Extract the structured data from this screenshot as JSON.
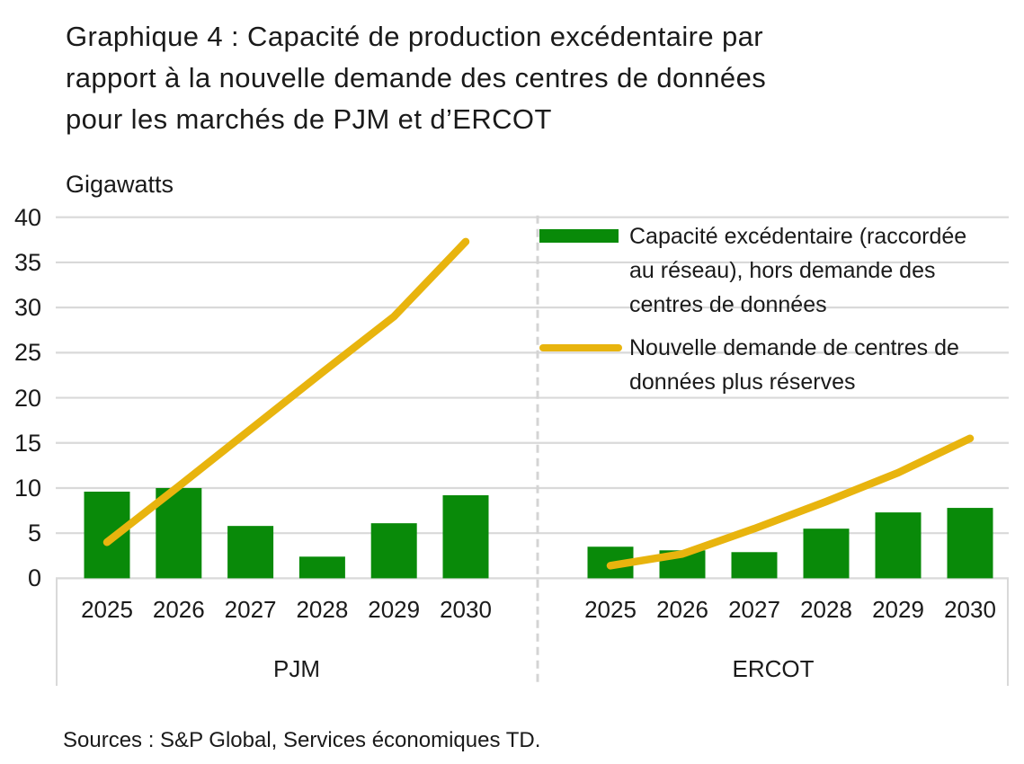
{
  "title": "Graphique 4 : Capacité de production excédentaire par\nrapport à la nouvelle demande des centres de données\npour les marchés de PJM et d’ERCOT",
  "unit_label": "Gigawatts",
  "source": "Sources : S&P Global, Services économiques TD.",
  "colors": {
    "bar_green": "#098A09",
    "line_yellow": "#E8B40E",
    "grid": "#D9D9D9",
    "divider": "#D4D4D4",
    "text": "#1A1A1A"
  },
  "legend": {
    "items": [
      {
        "type": "bar",
        "label": "Capacité excédentaire (raccordée\nau réseau), hors demande des\ncentres de données"
      },
      {
        "type": "line",
        "label": "Nouvelle demande de centres de\ndonnées plus réserves"
      }
    ]
  },
  "chart_data": {
    "type": "bar+line",
    "title": "Graphique 4 : Capacité de production excédentaire par rapport à la nouvelle demande des centres de données pour les marchés de PJM et d’ERCOT",
    "ylabel": "Gigawatts",
    "ylim": [
      0,
      40
    ],
    "yticks": [
      0,
      5,
      10,
      15,
      20,
      25,
      30,
      35,
      40
    ],
    "grid": true,
    "legend_position": "top-right-inside",
    "categories": [
      "2025",
      "2026",
      "2027",
      "2028",
      "2029",
      "2030"
    ],
    "series": [
      {
        "name": "Capacité excédentaire (raccordée au réseau), hors demande des centres de données",
        "type": "bar",
        "color": "#098A09"
      },
      {
        "name": "Nouvelle demande de centres de données plus réserves",
        "type": "line",
        "color": "#E8B40E"
      }
    ],
    "panels": [
      {
        "name": "PJM",
        "bars": [
          9.6,
          10.0,
          5.8,
          2.4,
          6.1,
          9.2
        ],
        "line": [
          4.0,
          10.2,
          16.5,
          22.8,
          29.0,
          37.3
        ]
      },
      {
        "name": "ERCOT",
        "bars": [
          3.5,
          3.1,
          2.9,
          5.5,
          7.3,
          7.8
        ],
        "line": [
          1.4,
          2.7,
          5.5,
          8.5,
          11.7,
          15.5
        ]
      }
    ]
  }
}
